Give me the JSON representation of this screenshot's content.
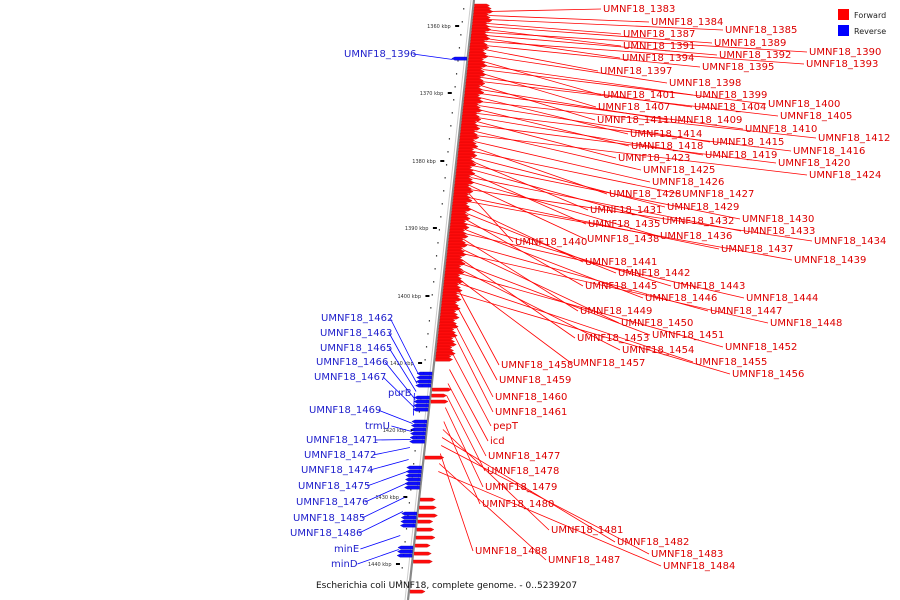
{
  "caption": "Escherichia coli UMNF18, complete genome. - 0..5239207",
  "colors": {
    "forward": "#ff0000",
    "reverse": "#0000ff",
    "backbone": "#888888"
  },
  "legend": [
    {
      "label": "Forward",
      "color": "#ff0000"
    },
    {
      "label": "Reverse",
      "color": "#0000ff"
    }
  ],
  "scale_ticks": [
    "1360 kbp",
    "1370 kbp",
    "1380 kbp",
    "1390 kbp",
    "1400 kbp",
    "1410 kbp",
    "1420 kbp",
    "1430 kbp",
    "1440 kbp"
  ],
  "forward_genes": [
    "UMNF18_1383",
    "UMNF18_1384",
    "UMNF18_1385",
    "UMNF18_1387",
    "UMNF18_1389",
    "UMNF18_1391",
    "UMNF18_1390",
    "UMNF18_1392",
    "UMNF18_1394",
    "UMNF18_1393",
    "UMNF18_1395",
    "UMNF18_1397",
    "UMNF18_1398",
    "UMNF18_1401",
    "UMNF18_1399",
    "UMNF18_1400",
    "UMNF18_1407",
    "UMNF18_1404",
    "UMNF18_1405",
    "UMNF18_1411",
    "UMNF18_1409",
    "UMNF18_1410",
    "UMNF18_1414",
    "UMNF18_1412",
    "UMNF18_1415",
    "UMNF18_1418",
    "UMNF18_1416",
    "UMNF18_1419",
    "UMNF18_1423",
    "UMNF18_1420",
    "UMNF18_1425",
    "UMNF18_1424",
    "UMNF18_1426",
    "UMNF18_1428",
    "UMNF18_1427",
    "UMNF18_1429",
    "UMNF18_1431",
    "UMNF18_1430",
    "UMNF18_1432",
    "UMNF18_1435",
    "UMNF18_1433",
    "UMNF18_1436",
    "UMNF18_1438",
    "UMNF18_1434",
    "UMNF18_1440",
    "UMNF18_1437",
    "UMNF18_1439",
    "UMNF18_1441",
    "UMNF18_1442",
    "UMNF18_1445",
    "UMNF18_1443",
    "UMNF18_1446",
    "UMNF18_1444",
    "UMNF18_1449",
    "UMNF18_1447",
    "UMNF18_1450",
    "UMNF18_1448",
    "UMNF18_1453",
    "UMNF18_1451",
    "UMNF18_1454",
    "UMNF18_1452",
    "UMNF18_1457",
    "UMNF18_1455",
    "UMNF18_1458",
    "UMNF18_1456",
    "UMNF18_1459",
    "UMNF18_1460",
    "UMNF18_1461",
    "pepT",
    "icd",
    "UMNF18_1477",
    "UMNF18_1478",
    "UMNF18_1479",
    "UMNF18_1480",
    "UMNF18_1481",
    "UMNF18_1482",
    "UMNF18_1483",
    "UMNF18_1488",
    "UMNF18_1487",
    "UMNF18_1484"
  ],
  "reverse_genes": [
    "UMNF18_1396",
    "UMNF18_1462",
    "UMNF18_1463",
    "UMNF18_1465",
    "UMNF18_1466",
    "UMNF18_1467",
    "purB",
    "UMNF18_1469",
    "trmU",
    "UMNF18_1471",
    "UMNF18_1472",
    "UMNF18_1474",
    "UMNF18_1475",
    "UMNF18_1476",
    "UMNF18_1485",
    "UMNF18_1486",
    "minE",
    "minD"
  ]
}
